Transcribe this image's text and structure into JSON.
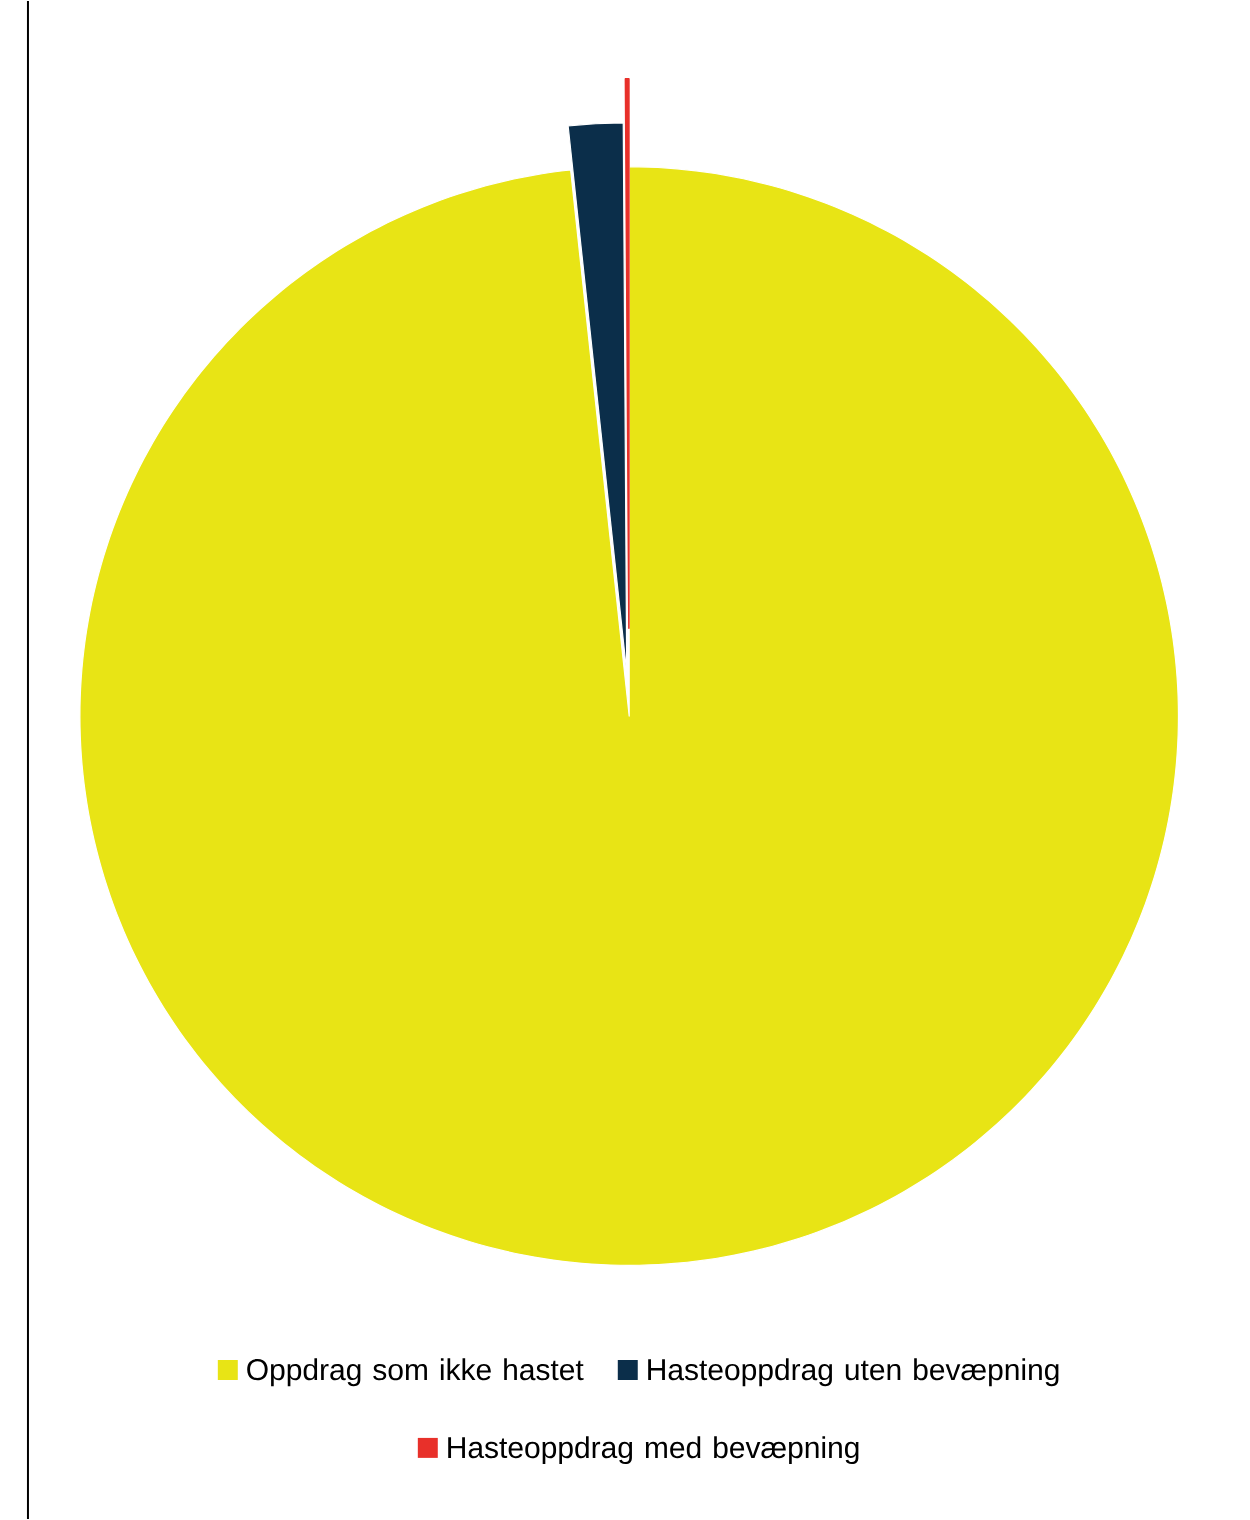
{
  "chart_data": {
    "type": "pie",
    "categories": [
      "Oppdrag som ikke hastet",
      "Hasteoppdrag uten bevæpning",
      "Hasteoppdrag med bevæpning"
    ],
    "values": [
      98.3,
      1.6,
      0.1
    ],
    "colors": [
      "#e8e415",
      "#0b2e4a",
      "#e8302a"
    ],
    "legend": "bottom"
  }
}
